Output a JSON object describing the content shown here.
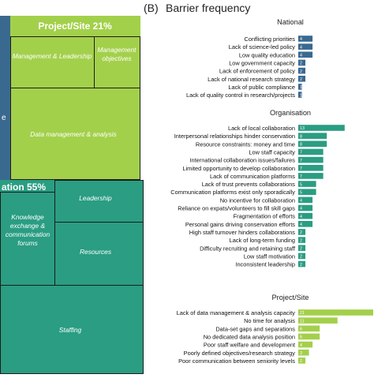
{
  "panel_b": {
    "letter": "(B)",
    "title": "Barrier frequency"
  },
  "treemap": {
    "colors": {
      "national": "#3a6990",
      "project": "#a3d04b",
      "organisation": "#2a9d82",
      "border": "#1d1d1d"
    },
    "project_label": "Project/Site 21%",
    "project_cells": [
      "Management & Leadership",
      "Management objectives",
      "Data management & analysis"
    ],
    "organisation_label": "ation 55%",
    "organisation_cells": [
      "Leadership",
      "Knowledge exchange & communication forums",
      "Resources",
      "Staffing"
    ],
    "national_label": "e"
  },
  "chart_data": {
    "type": "bar",
    "title": "Barrier frequency",
    "orientation": "horizontal",
    "xlim": [
      0,
      21
    ],
    "groups": [
      {
        "name": "National",
        "color": "#3a6990",
        "categories": [
          "Conflicting priorities",
          "Lack of science-led policy",
          "Low quality education",
          "Low government capacity",
          "Lack of enforcement of policy",
          "Lack of national research strategy",
          "Lack of public compliance",
          "Lack of quality control in research/projects"
        ],
        "values": [
          4,
          4,
          4,
          2,
          2,
          2,
          1,
          1
        ]
      },
      {
        "name": "Organisation",
        "color": "#2a9d82",
        "categories": [
          "Lack of local collaboration",
          "Interpersonal relationships hinder conservation",
          "Resource constraints: money and time",
          "Low staff capacity",
          "International collaboration issues/failures",
          "Limited opportunity to develop collaboration",
          "Lack of communication platforms",
          "Lack of trust prevents collaborations",
          "Communication platforms exist only sporadically",
          "No incentive for collaboration",
          "Reliance on expats/volunteers to fill skill gaps",
          "Fragmentation of efforts",
          "Personal gains driving conservation efforts",
          "High staff turnover hinders collaborations",
          "Lack of long-term funding",
          "Difficulty recruiting and retaining staff",
          "Low staff motivation",
          "Inconsistent leadership"
        ],
        "values": [
          13,
          8,
          8,
          7,
          7,
          7,
          7,
          5,
          5,
          4,
          4,
          4,
          4,
          2,
          2,
          2,
          2,
          2
        ]
      },
      {
        "name": "Project/Site",
        "color": "#a3d04b",
        "categories": [
          "Lack of data management & analysis capacity",
          "No time for analysis",
          "Data-set gaps and separations",
          "No dedicated data analysis position",
          "Poor staff welfare and development",
          "Poorly defined objectives/research strategy",
          "Poor communication between seniority levels"
        ],
        "values": [
          21,
          11,
          6,
          6,
          4,
          3,
          2
        ]
      }
    ]
  }
}
